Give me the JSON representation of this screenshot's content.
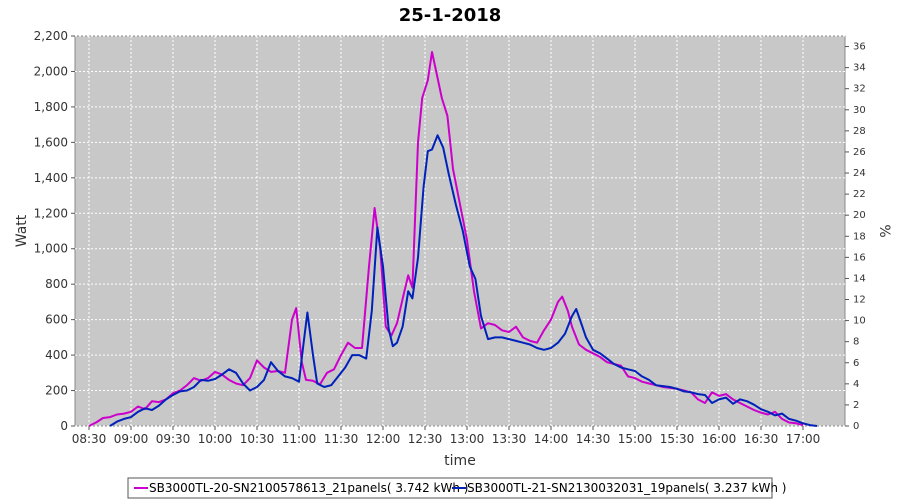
{
  "chart_data": {
    "type": "line",
    "title": "25-1-2018",
    "xlabel": "time",
    "ylabel": "Watt",
    "y2label": "%",
    "ylim": [
      0,
      2200
    ],
    "y2lim": [
      0,
      37
    ],
    "xlim": [
      "08:20",
      "17:30"
    ],
    "grid": true,
    "legend_position": "bottom",
    "x_ticks": [
      "08:30",
      "09:00",
      "09:30",
      "10:00",
      "10:30",
      "11:00",
      "11:30",
      "12:00",
      "12:30",
      "13:00",
      "13:30",
      "14:00",
      "14:30",
      "15:00",
      "15:30",
      "16:00",
      "16:30",
      "17:00"
    ],
    "y_ticks": [
      "0",
      "200",
      "400",
      "600",
      "800",
      "1,000",
      "1,200",
      "1,400",
      "1,600",
      "1,800",
      "2,000",
      "2,200"
    ],
    "y2_ticks": [
      "0",
      "2",
      "4",
      "6",
      "8",
      "10",
      "12",
      "14",
      "16",
      "18",
      "20",
      "22",
      "24",
      "26",
      "28",
      "30",
      "32",
      "34",
      "36"
    ],
    "series": [
      {
        "name": "SB3000TL-20-SN2100578613_21panels( 3.742 kWh )",
        "color": "#cc00cc",
        "points": [
          [
            "08:30",
            0
          ],
          [
            "08:35",
            20
          ],
          [
            "08:40",
            45
          ],
          [
            "08:45",
            50
          ],
          [
            "08:50",
            65
          ],
          [
            "08:55",
            70
          ],
          [
            "09:00",
            80
          ],
          [
            "09:05",
            110
          ],
          [
            "09:10",
            95
          ],
          [
            "09:15",
            140
          ],
          [
            "09:20",
            135
          ],
          [
            "09:25",
            150
          ],
          [
            "09:30",
            185
          ],
          [
            "09:35",
            200
          ],
          [
            "09:40",
            230
          ],
          [
            "09:45",
            270
          ],
          [
            "09:50",
            255
          ],
          [
            "09:55",
            270
          ],
          [
            "10:00",
            305
          ],
          [
            "10:05",
            290
          ],
          [
            "10:10",
            260
          ],
          [
            "10:15",
            240
          ],
          [
            "10:20",
            230
          ],
          [
            "10:25",
            270
          ],
          [
            "10:30",
            370
          ],
          [
            "10:35",
            330
          ],
          [
            "10:40",
            305
          ],
          [
            "10:45",
            310
          ],
          [
            "10:50",
            300
          ],
          [
            "10:55",
            600
          ],
          [
            "10:58",
            665
          ],
          [
            "11:02",
            360
          ],
          [
            "11:05",
            260
          ],
          [
            "11:10",
            255
          ],
          [
            "11:15",
            235
          ],
          [
            "11:20",
            300
          ],
          [
            "11:25",
            320
          ],
          [
            "11:30",
            400
          ],
          [
            "11:35",
            470
          ],
          [
            "11:40",
            440
          ],
          [
            "11:45",
            440
          ],
          [
            "11:50",
            900
          ],
          [
            "11:54",
            1230
          ],
          [
            "11:58",
            1000
          ],
          [
            "12:02",
            560
          ],
          [
            "12:06",
            510
          ],
          [
            "12:10",
            580
          ],
          [
            "12:15",
            750
          ],
          [
            "12:18",
            850
          ],
          [
            "12:21",
            780
          ],
          [
            "12:25",
            1600
          ],
          [
            "12:28",
            1850
          ],
          [
            "12:32",
            1950
          ],
          [
            "12:35",
            2110
          ],
          [
            "12:38",
            2000
          ],
          [
            "12:42",
            1850
          ],
          [
            "12:46",
            1750
          ],
          [
            "12:50",
            1450
          ],
          [
            "12:55",
            1250
          ],
          [
            "13:00",
            1050
          ],
          [
            "13:05",
            760
          ],
          [
            "13:10",
            550
          ],
          [
            "13:15",
            580
          ],
          [
            "13:20",
            570
          ],
          [
            "13:25",
            540
          ],
          [
            "13:30",
            530
          ],
          [
            "13:35",
            560
          ],
          [
            "13:40",
            500
          ],
          [
            "13:45",
            480
          ],
          [
            "13:50",
            470
          ],
          [
            "13:55",
            540
          ],
          [
            "14:00",
            600
          ],
          [
            "14:05",
            700
          ],
          [
            "14:08",
            730
          ],
          [
            "14:12",
            650
          ],
          [
            "14:15",
            560
          ],
          [
            "14:20",
            460
          ],
          [
            "14:25",
            430
          ],
          [
            "14:30",
            410
          ],
          [
            "14:35",
            390
          ],
          [
            "14:40",
            360
          ],
          [
            "14:45",
            350
          ],
          [
            "14:50",
            340
          ],
          [
            "14:55",
            280
          ],
          [
            "15:00",
            270
          ],
          [
            "15:05",
            250
          ],
          [
            "15:10",
            240
          ],
          [
            "15:15",
            230
          ],
          [
            "15:20",
            220
          ],
          [
            "15:25",
            215
          ],
          [
            "15:30",
            210
          ],
          [
            "15:35",
            200
          ],
          [
            "15:40",
            190
          ],
          [
            "15:45",
            150
          ],
          [
            "15:50",
            130
          ],
          [
            "15:55",
            190
          ],
          [
            "16:00",
            170
          ],
          [
            "16:05",
            180
          ],
          [
            "16:10",
            150
          ],
          [
            "16:15",
            130
          ],
          [
            "16:20",
            110
          ],
          [
            "16:25",
            90
          ],
          [
            "16:30",
            75
          ],
          [
            "16:35",
            65
          ],
          [
            "16:40",
            80
          ],
          [
            "16:45",
            40
          ],
          [
            "16:50",
            20
          ],
          [
            "16:55",
            15
          ],
          [
            "17:00",
            5
          ]
        ]
      },
      {
        "name": "SB3000TL-21-SN2130032031_19panels( 3.237 kWh )",
        "color": "#0022bb",
        "points": [
          [
            "08:45",
            0
          ],
          [
            "08:50",
            25
          ],
          [
            "08:55",
            40
          ],
          [
            "09:00",
            50
          ],
          [
            "09:05",
            80
          ],
          [
            "09:10",
            100
          ],
          [
            "09:15",
            90
          ],
          [
            "09:20",
            115
          ],
          [
            "09:25",
            150
          ],
          [
            "09:30",
            175
          ],
          [
            "09:35",
            195
          ],
          [
            "09:40",
            200
          ],
          [
            "09:45",
            220
          ],
          [
            "09:50",
            260
          ],
          [
            "09:55",
            255
          ],
          [
            "10:00",
            265
          ],
          [
            "10:05",
            290
          ],
          [
            "10:10",
            320
          ],
          [
            "10:15",
            300
          ],
          [
            "10:20",
            240
          ],
          [
            "10:25",
            200
          ],
          [
            "10:30",
            220
          ],
          [
            "10:35",
            260
          ],
          [
            "10:40",
            360
          ],
          [
            "10:45",
            310
          ],
          [
            "10:50",
            280
          ],
          [
            "10:55",
            270
          ],
          [
            "11:00",
            250
          ],
          [
            "11:03",
            450
          ],
          [
            "11:06",
            640
          ],
          [
            "11:10",
            400
          ],
          [
            "11:13",
            240
          ],
          [
            "11:18",
            220
          ],
          [
            "11:23",
            230
          ],
          [
            "11:28",
            280
          ],
          [
            "11:33",
            330
          ],
          [
            "11:38",
            400
          ],
          [
            "11:43",
            400
          ],
          [
            "11:48",
            380
          ],
          [
            "11:52",
            650
          ],
          [
            "11:56",
            1120
          ],
          [
            "12:00",
            900
          ],
          [
            "12:04",
            550
          ],
          [
            "12:07",
            450
          ],
          [
            "12:10",
            470
          ],
          [
            "12:14",
            560
          ],
          [
            "12:18",
            760
          ],
          [
            "12:21",
            720
          ],
          [
            "12:25",
            950
          ],
          [
            "12:29",
            1350
          ],
          [
            "12:32",
            1550
          ],
          [
            "12:35",
            1560
          ],
          [
            "12:39",
            1640
          ],
          [
            "12:43",
            1570
          ],
          [
            "12:47",
            1420
          ],
          [
            "12:52",
            1250
          ],
          [
            "12:57",
            1100
          ],
          [
            "13:02",
            900
          ],
          [
            "13:06",
            830
          ],
          [
            "13:10",
            620
          ],
          [
            "13:15",
            490
          ],
          [
            "13:20",
            500
          ],
          [
            "13:25",
            500
          ],
          [
            "13:30",
            490
          ],
          [
            "13:35",
            480
          ],
          [
            "13:40",
            470
          ],
          [
            "13:45",
            460
          ],
          [
            "13:50",
            440
          ],
          [
            "13:55",
            430
          ],
          [
            "14:00",
            440
          ],
          [
            "14:05",
            470
          ],
          [
            "14:10",
            520
          ],
          [
            "14:15",
            620
          ],
          [
            "14:18",
            660
          ],
          [
            "14:22",
            570
          ],
          [
            "14:25",
            500
          ],
          [
            "14:30",
            430
          ],
          [
            "14:35",
            410
          ],
          [
            "14:40",
            380
          ],
          [
            "14:45",
            350
          ],
          [
            "14:50",
            330
          ],
          [
            "14:55",
            320
          ],
          [
            "15:00",
            310
          ],
          [
            "15:05",
            280
          ],
          [
            "15:10",
            260
          ],
          [
            "15:15",
            230
          ],
          [
            "15:20",
            225
          ],
          [
            "15:25",
            220
          ],
          [
            "15:30",
            210
          ],
          [
            "15:35",
            195
          ],
          [
            "15:40",
            190
          ],
          [
            "15:45",
            180
          ],
          [
            "15:50",
            175
          ],
          [
            "15:55",
            130
          ],
          [
            "16:00",
            150
          ],
          [
            "16:05",
            160
          ],
          [
            "16:10",
            125
          ],
          [
            "16:15",
            150
          ],
          [
            "16:20",
            140
          ],
          [
            "16:25",
            120
          ],
          [
            "16:30",
            95
          ],
          [
            "16:35",
            80
          ],
          [
            "16:40",
            60
          ],
          [
            "16:45",
            70
          ],
          [
            "16:50",
            40
          ],
          [
            "16:55",
            30
          ],
          [
            "17:00",
            15
          ],
          [
            "17:05",
            5
          ],
          [
            "17:10",
            0
          ]
        ]
      }
    ]
  }
}
